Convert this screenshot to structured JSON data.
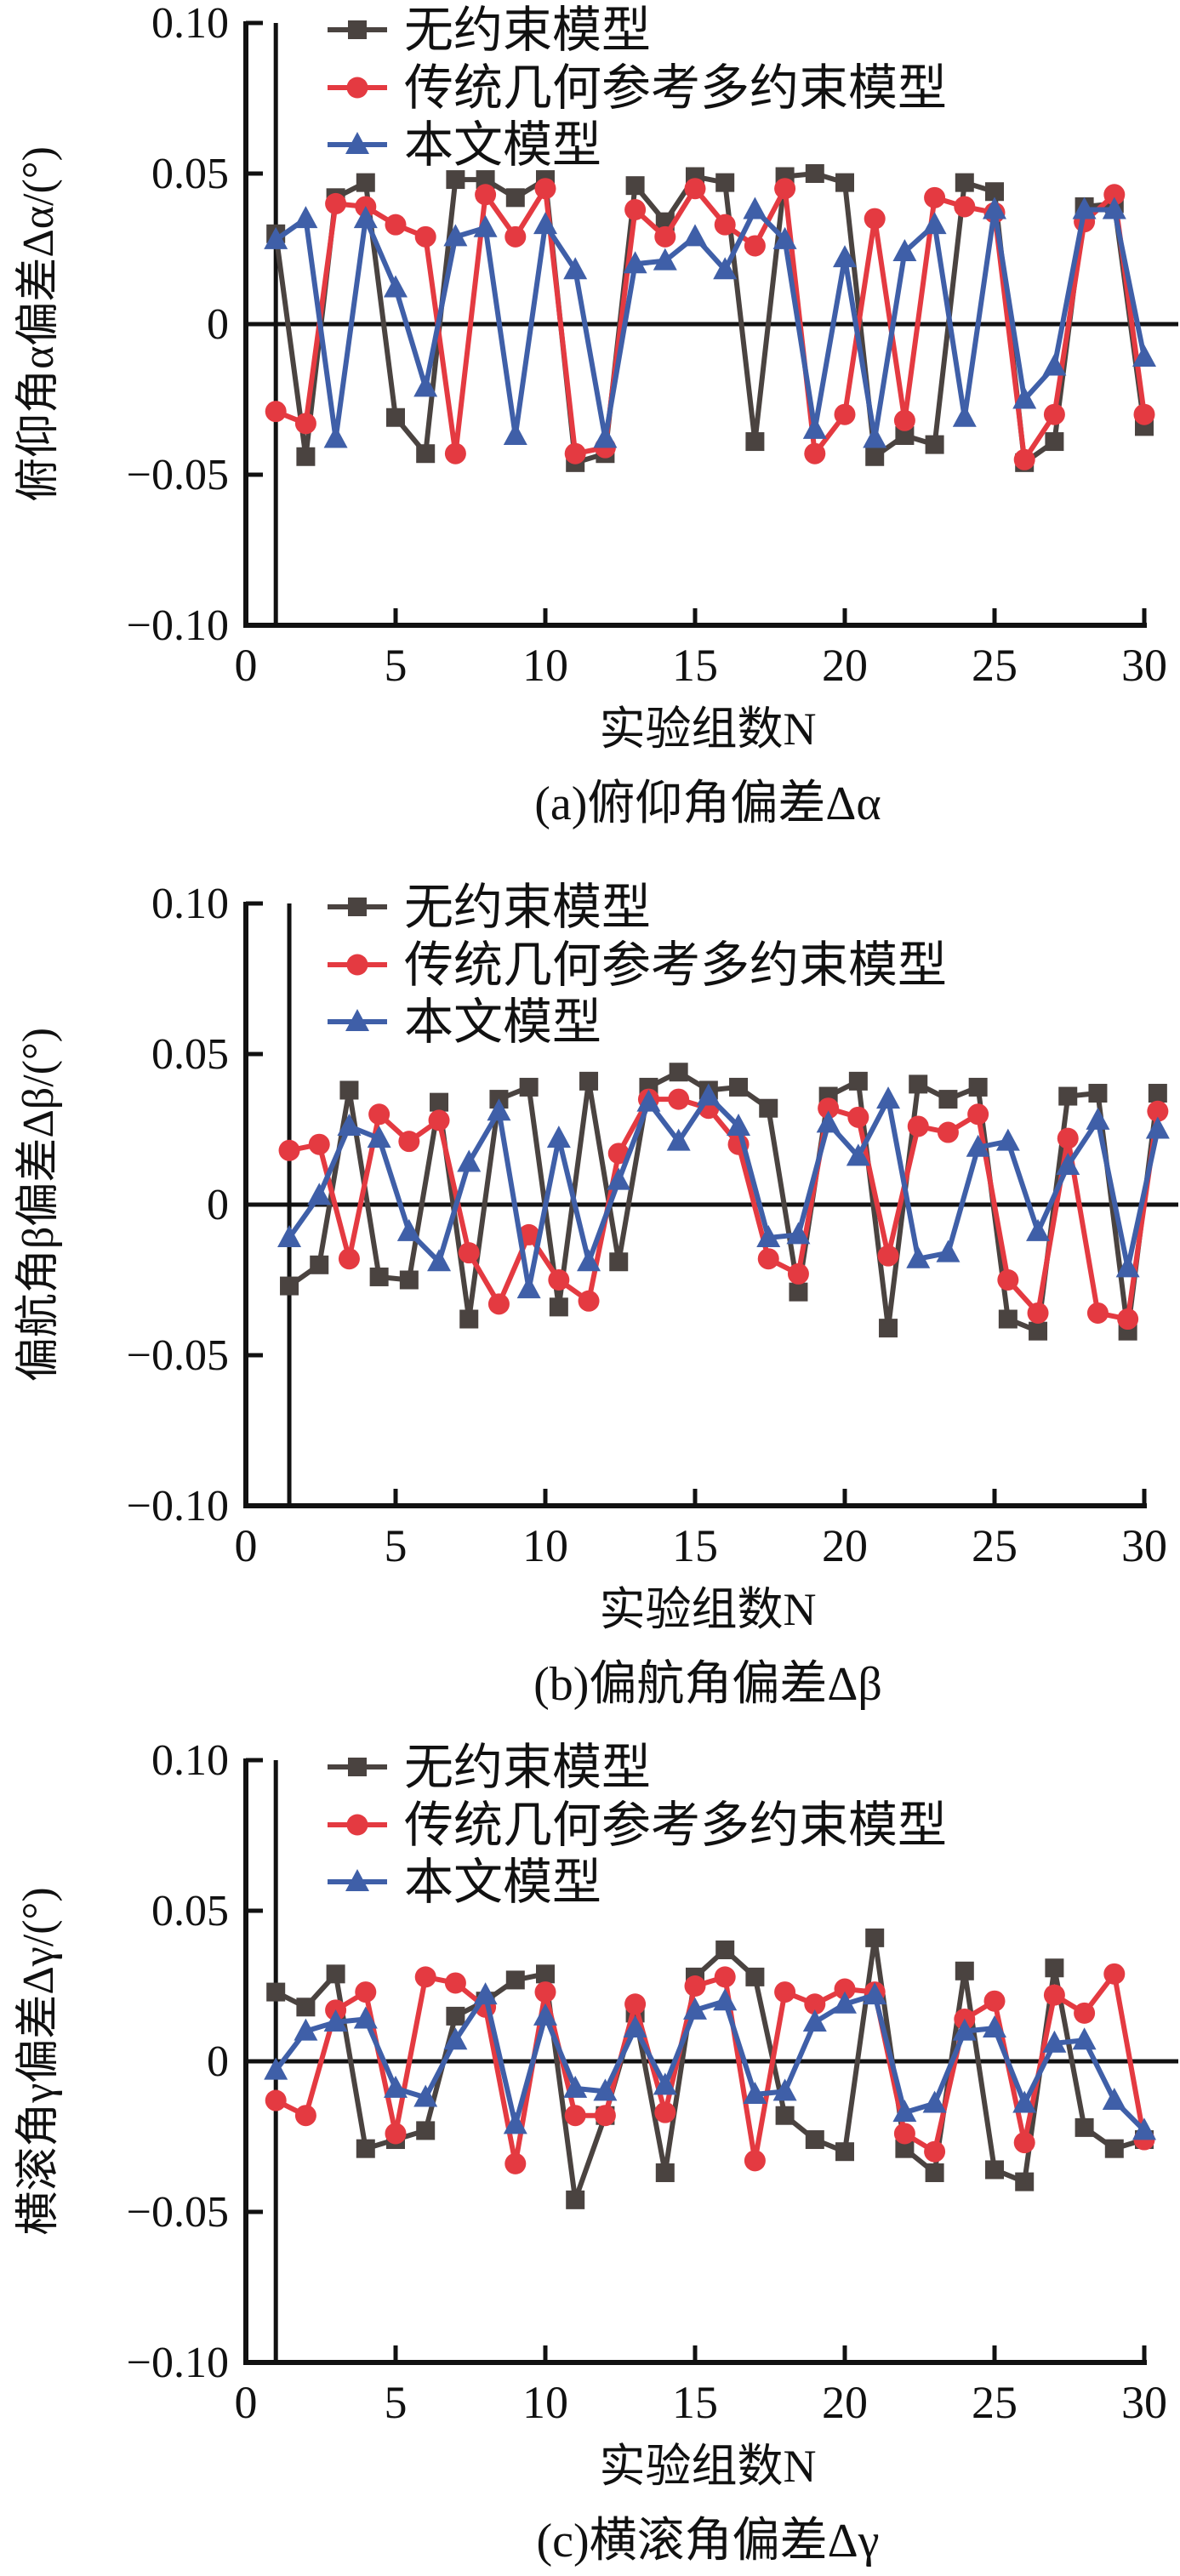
{
  "legend": [
    "无约束模型",
    "传统几何参考多约束模型",
    "本文模型"
  ],
  "colors": {
    "unconstrained": "#4a4340",
    "traditional": "#e43a41",
    "proposed": "#3f5fa8",
    "axis": "#111111"
  },
  "chart_data": [
    {
      "type": "line",
      "title": "(a)俯仰角偏差Δα",
      "xlabel": "实验组数N",
      "ylabel": "俯仰角α偏差Δα/(°)",
      "xlim": [
        0,
        30
      ],
      "ylim": [
        -0.1,
        0.1
      ],
      "xticks": [
        "0",
        "5",
        "10",
        "15",
        "20",
        "25",
        "30"
      ],
      "yticks": [
        "0.10",
        "0.05",
        "0",
        "−0.05",
        "−0.10"
      ],
      "x_offset": 0,
      "series": [
        {
          "name": "无约束模型",
          "marker": "square",
          "values": [
            0.03,
            -0.044,
            0.042,
            0.047,
            -0.031,
            -0.043,
            0.048,
            0.048,
            0.042,
            0.048,
            -0.046,
            -0.043,
            0.046,
            0.034,
            0.049,
            0.047,
            -0.039,
            0.049,
            0.05,
            0.047,
            -0.044,
            -0.037,
            -0.04,
            0.047,
            0.044,
            -0.046,
            -0.039,
            0.039,
            0.04,
            -0.034
          ]
        },
        {
          "name": "传统几何参考多约束模型",
          "marker": "circle",
          "values": [
            -0.029,
            -0.033,
            0.04,
            0.039,
            0.033,
            0.029,
            -0.043,
            0.043,
            0.029,
            0.045,
            -0.043,
            -0.041,
            0.038,
            0.029,
            0.045,
            0.033,
            0.026,
            0.045,
            -0.043,
            -0.03,
            0.035,
            -0.032,
            0.042,
            0.039,
            0.037,
            -0.045,
            -0.03,
            0.034,
            0.043,
            -0.03
          ]
        },
        {
          "name": "本文模型",
          "marker": "triangle",
          "values": [
            0.028,
            0.035,
            -0.038,
            0.035,
            0.012,
            -0.021,
            0.029,
            0.032,
            -0.037,
            0.033,
            0.018,
            -0.038,
            0.02,
            0.021,
            0.029,
            0.018,
            0.038,
            0.028,
            -0.035,
            0.022,
            -0.038,
            0.024,
            0.033,
            -0.031,
            0.038,
            -0.025,
            -0.014,
            0.038,
            0.038,
            -0.011
          ]
        }
      ]
    },
    {
      "type": "line",
      "title": "(b)偏航角偏差Δβ",
      "xlabel": "实验组数N",
      "ylabel": "偏航角β偏差Δβ/(°)",
      "xlim": [
        0,
        30
      ],
      "ylim": [
        -0.1,
        0.1
      ],
      "xticks": [
        "0",
        "5",
        "10",
        "15",
        "20",
        "25",
        "30"
      ],
      "yticks": [
        "0.10",
        "0.05",
        "0",
        "−0.05",
        "−0.10"
      ],
      "x_offset": 0.45,
      "series": [
        {
          "name": "无约束模型",
          "marker": "square",
          "values": [
            -0.027,
            -0.02,
            0.038,
            -0.024,
            -0.025,
            0.034,
            -0.038,
            0.035,
            0.039,
            -0.034,
            0.041,
            -0.019,
            0.039,
            0.044,
            0.038,
            0.039,
            0.032,
            -0.029,
            0.036,
            0.041,
            -0.041,
            0.04,
            0.035,
            0.039,
            -0.038,
            -0.042,
            0.036,
            0.037,
            -0.042,
            0.037
          ]
        },
        {
          "name": "传统几何参考多约束模型",
          "marker": "circle",
          "values": [
            0.018,
            0.02,
            -0.018,
            0.03,
            0.021,
            0.028,
            -0.016,
            -0.033,
            -0.01,
            -0.025,
            -0.032,
            0.017,
            0.035,
            0.035,
            0.032,
            0.02,
            -0.018,
            -0.023,
            0.032,
            0.029,
            -0.017,
            0.026,
            0.024,
            0.03,
            -0.025,
            -0.036,
            0.022,
            -0.036,
            -0.038,
            0.031
          ]
        },
        {
          "name": "本文模型",
          "marker": "triangle",
          "values": [
            -0.011,
            0.003,
            0.026,
            0.022,
            -0.009,
            -0.019,
            0.014,
            0.031,
            -0.028,
            0.022,
            -0.019,
            0.008,
            0.034,
            0.021,
            0.036,
            0.026,
            -0.011,
            -0.01,
            0.027,
            0.016,
            0.035,
            -0.018,
            -0.016,
            0.019,
            0.021,
            -0.009,
            0.013,
            0.028,
            -0.021,
            0.025
          ]
        }
      ]
    },
    {
      "type": "line",
      "title": "(c)横滚角偏差Δγ",
      "xlabel": "实验组数N",
      "ylabel": "横滚角γ偏差Δγ/(°)",
      "xlim": [
        0,
        30
      ],
      "ylim": [
        -0.1,
        0.1
      ],
      "xticks": [
        "0",
        "5",
        "10",
        "15",
        "20",
        "25",
        "30"
      ],
      "yticks": [
        "0.10",
        "0.05",
        "0",
        "−0.05",
        "−0.10"
      ],
      "x_offset": 0,
      "series": [
        {
          "name": "无约束模型",
          "marker": "square",
          "values": [
            0.023,
            0.018,
            0.029,
            -0.029,
            -0.026,
            -0.023,
            0.015,
            0.02,
            0.027,
            0.029,
            -0.046,
            -0.018,
            0.016,
            -0.037,
            0.028,
            0.037,
            0.028,
            -0.018,
            -0.026,
            -0.03,
            0.041,
            -0.029,
            -0.037,
            0.03,
            -0.036,
            -0.04,
            0.031,
            -0.022,
            -0.029,
            -0.026
          ]
        },
        {
          "name": "传统几何参考多约束模型",
          "marker": "circle",
          "values": [
            -0.013,
            -0.018,
            0.017,
            0.023,
            -0.024,
            0.028,
            0.026,
            0.018,
            -0.034,
            0.023,
            -0.018,
            -0.018,
            0.019,
            -0.017,
            0.025,
            0.028,
            -0.033,
            0.023,
            0.019,
            0.024,
            0.023,
            -0.024,
            -0.03,
            0.014,
            0.02,
            -0.027,
            0.022,
            0.016,
            0.029,
            -0.026
          ]
        },
        {
          "name": "本文模型",
          "marker": "triangle",
          "values": [
            -0.003,
            0.01,
            0.013,
            0.014,
            -0.009,
            -0.012,
            0.007,
            0.022,
            -0.021,
            0.015,
            -0.009,
            -0.01,
            0.011,
            -0.008,
            0.017,
            0.02,
            -0.011,
            -0.01,
            0.013,
            0.019,
            0.022,
            -0.017,
            -0.014,
            0.01,
            0.011,
            -0.014,
            0.006,
            0.007,
            -0.013,
            -0.023
          ]
        }
      ]
    }
  ]
}
